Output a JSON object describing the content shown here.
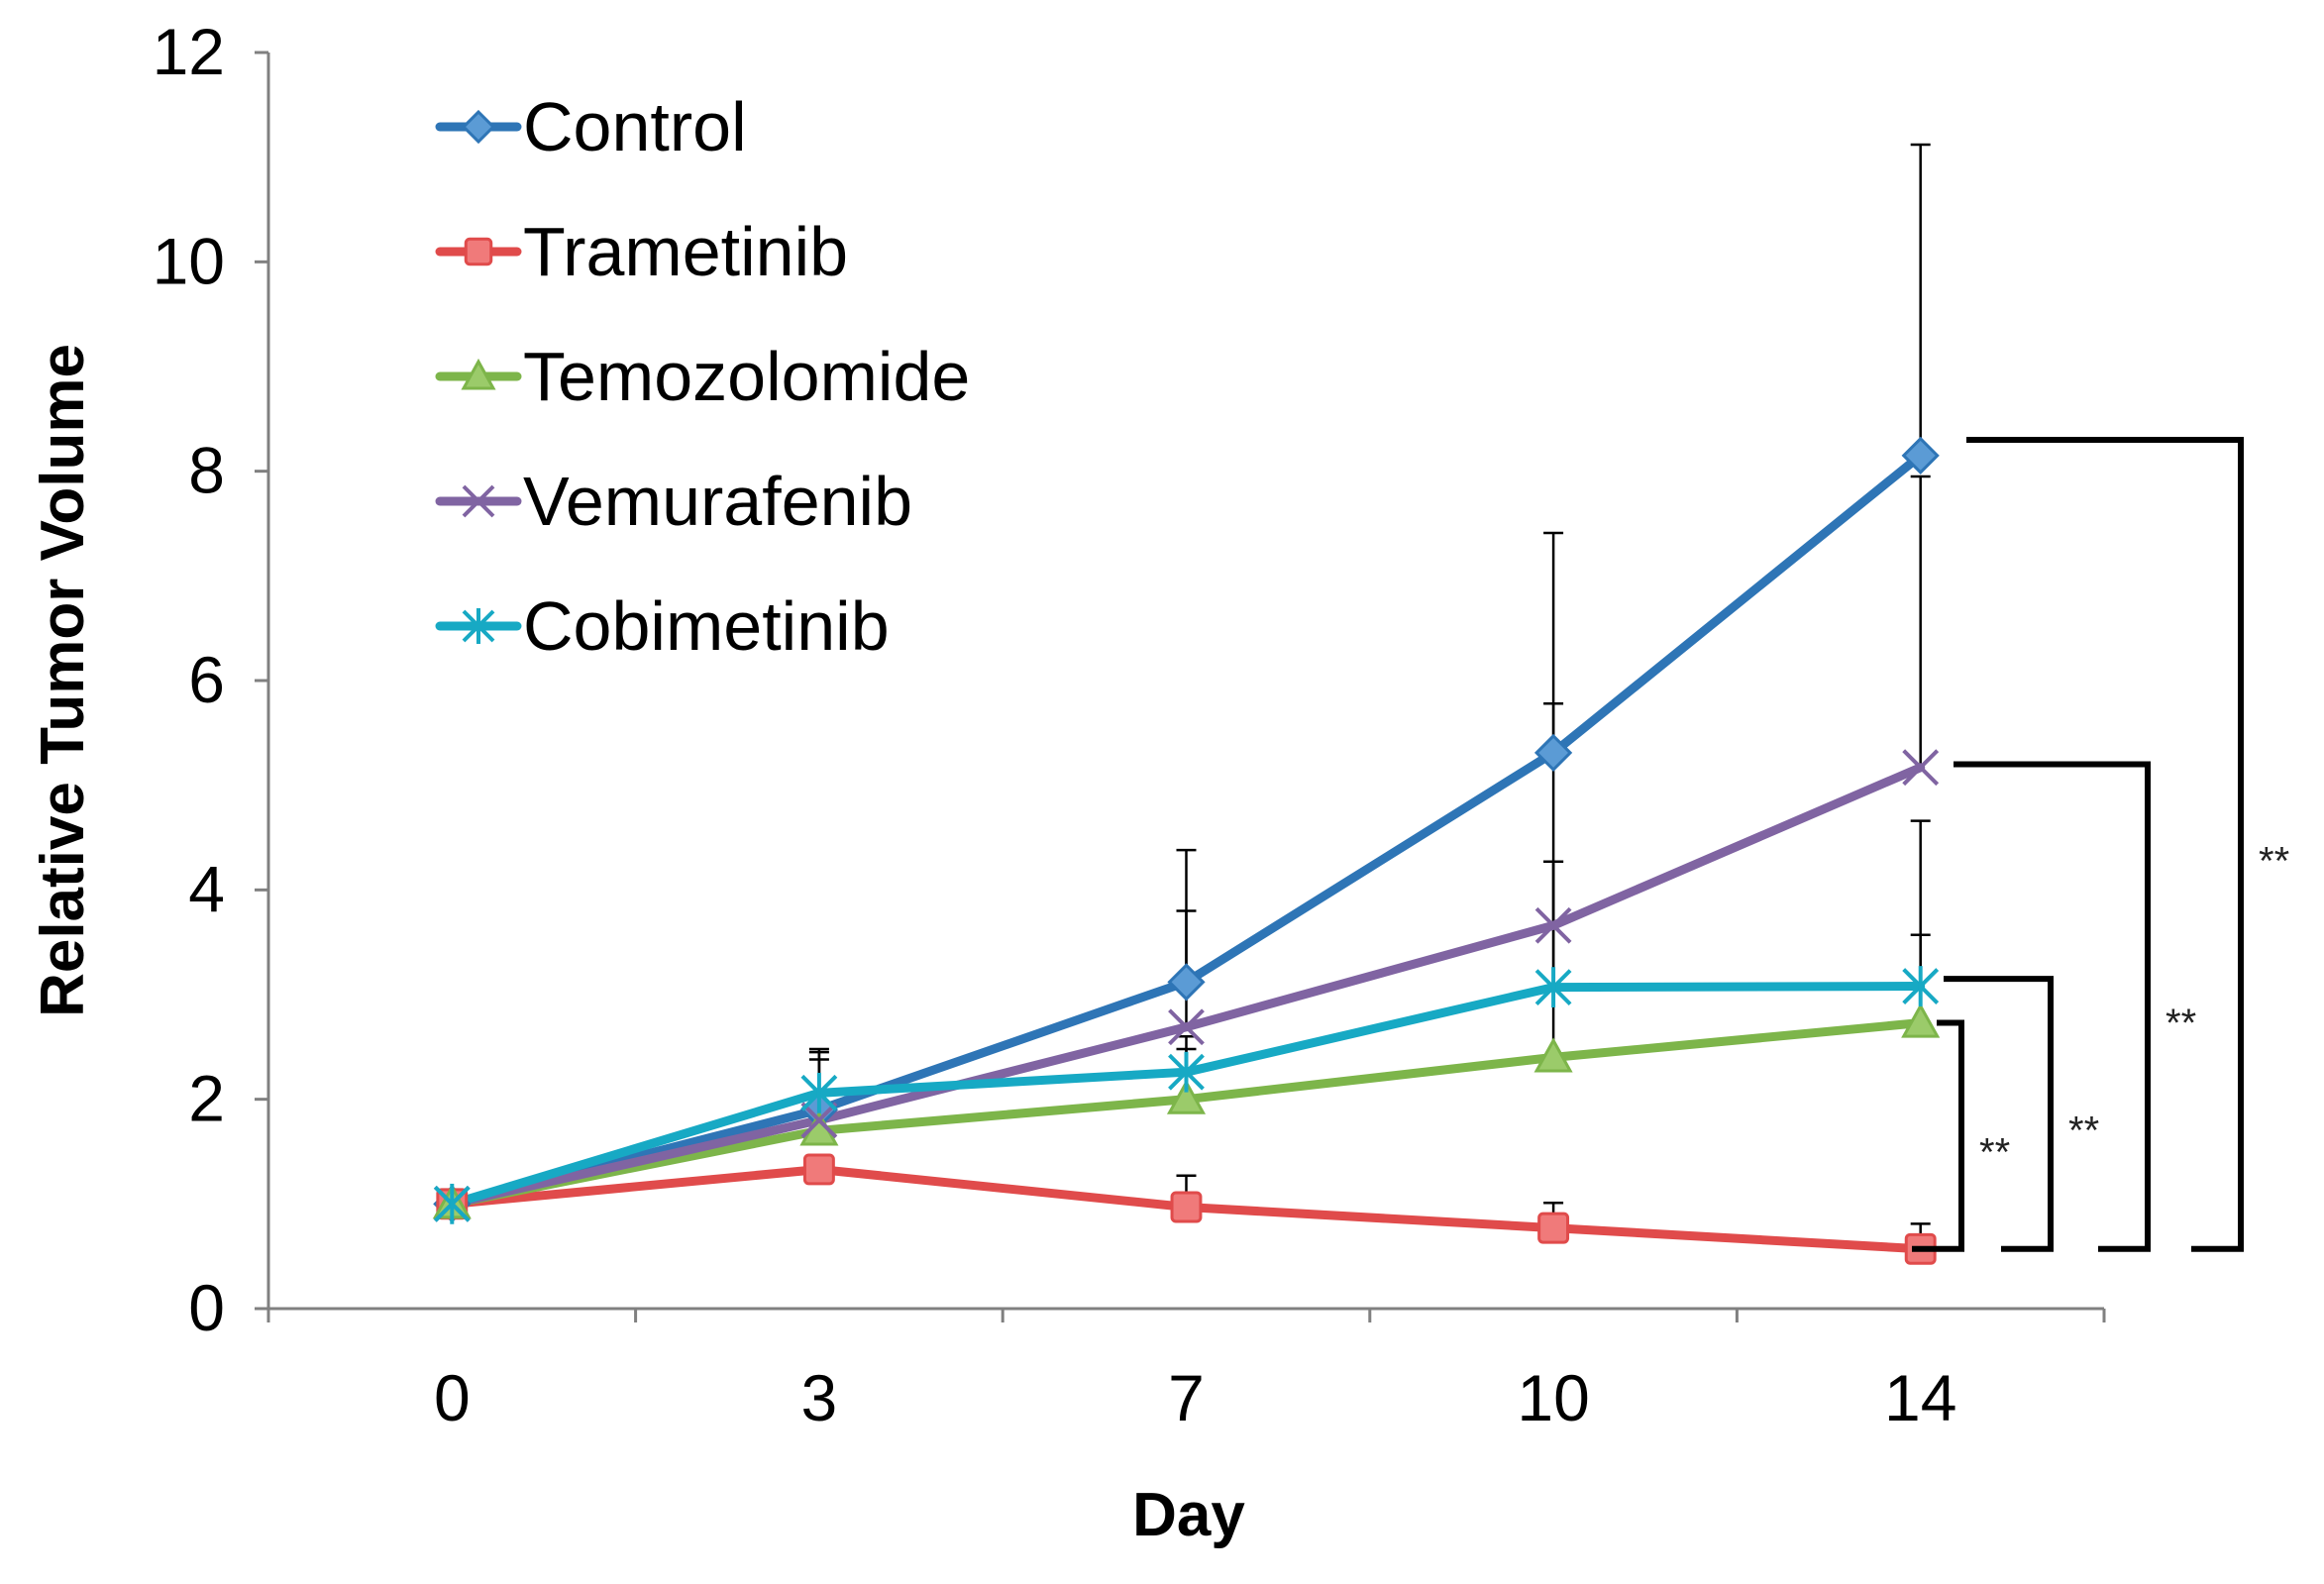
{
  "chart_data": {
    "type": "line",
    "title": "",
    "xlabel": "Day",
    "ylabel": "Relative Tumor Volume",
    "categories": [
      "0",
      "3",
      "7",
      "10",
      "14"
    ],
    "yticks": [
      "0",
      "2",
      "4",
      "6",
      "8",
      "10",
      "12"
    ],
    "ylim": [
      0,
      12
    ],
    "grid": false,
    "legend_position": "top-left",
    "series": [
      {
        "name": "Control",
        "color": "#2E75B6",
        "marker": "diamond",
        "marker_fill": "#5B9BD5",
        "values": [
          1.0,
          1.9,
          3.12,
          5.31,
          8.15
        ],
        "error_upper": [
          1.0,
          2.45,
          4.38,
          7.41,
          11.12
        ]
      },
      {
        "name": "Trametinib",
        "color": "#E04B4B",
        "marker": "square",
        "marker_fill": "#F07A7A",
        "values": [
          1.0,
          1.33,
          0.97,
          0.77,
          0.57
        ],
        "error_upper": [
          1.0,
          1.33,
          1.27,
          1.01,
          0.81
        ]
      },
      {
        "name": "Temozolomide",
        "color": "#7DB54A",
        "marker": "triangle",
        "marker_fill": "#9BCB6A",
        "values": [
          1.0,
          1.7,
          2.0,
          2.4,
          2.73
        ],
        "error_upper": [
          1.0,
          1.7,
          2.6,
          4.27,
          3.57
        ]
      },
      {
        "name": "Vemurafenib",
        "color": "#8064A2",
        "marker": "x",
        "marker_fill": "#8064A2",
        "values": [
          1.0,
          1.8,
          2.69,
          3.66,
          5.17
        ],
        "error_upper": [
          1.0,
          2.48,
          3.8,
          5.78,
          7.95
        ]
      },
      {
        "name": "Cobimetinib",
        "color": "#17A9C4",
        "marker": "asterisk",
        "marker_fill": "#17A9C4",
        "values": [
          1.0,
          2.06,
          2.26,
          3.07,
          3.08
        ],
        "error_upper": [
          1.0,
          2.38,
          2.48,
          4.27,
          4.66
        ]
      }
    ],
    "significance": [
      {
        "label": "**",
        "from_y": 2.73,
        "to_y": 0.57
      },
      {
        "label": "**",
        "from_y": 3.15,
        "to_y": 0.57
      },
      {
        "label": "**",
        "from_y": 5.2,
        "to_y": 0.57
      },
      {
        "label": "**",
        "from_y": 8.3,
        "to_y": 0.57
      }
    ]
  }
}
